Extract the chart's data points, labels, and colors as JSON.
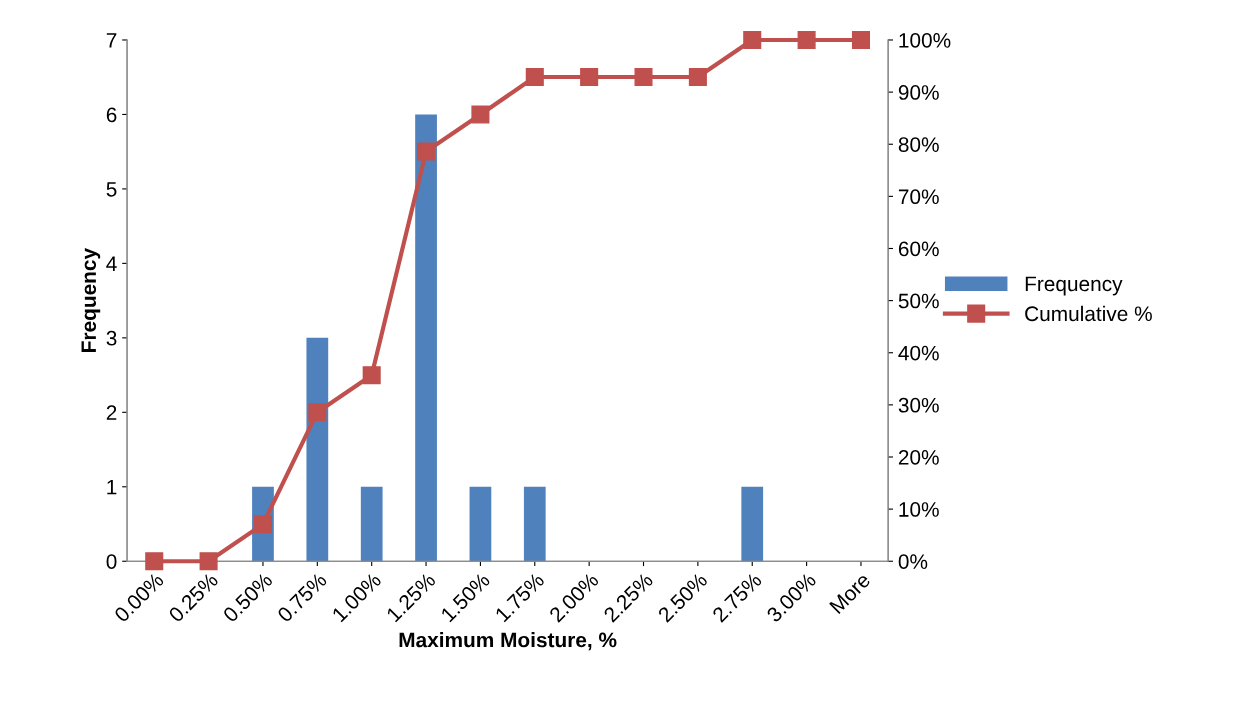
{
  "chart_data": {
    "type": "bar",
    "xlabel": "Maximum Moisture, %",
    "ylabel": "Frequency",
    "categories": [
      "0.00%",
      "0.25%",
      "0.50%",
      "0.75%",
      "1.00%",
      "1.25%",
      "1.50%",
      "1.75%",
      "2.00%",
      "2.25%",
      "2.50%",
      "2.75%",
      "3.00%",
      "More"
    ],
    "series": [
      {
        "name": "Frequency",
        "color": "#4f81bd",
        "values": [
          0,
          0,
          1,
          3,
          1,
          6,
          1,
          1,
          0,
          0,
          0,
          1,
          0,
          0
        ]
      },
      {
        "name": "Cumulative %",
        "type": "line",
        "axis": "y2",
        "color": "#c0504d",
        "marker": "square",
        "values": [
          0,
          0,
          7.1,
          28.6,
          35.7,
          78.6,
          85.7,
          92.9,
          92.9,
          92.9,
          92.9,
          100,
          100,
          100
        ]
      }
    ],
    "ylim": [
      0,
      7
    ],
    "yticks": [
      0,
      1,
      2,
      3,
      4,
      5,
      6,
      7
    ],
    "y2lim": [
      0,
      100
    ],
    "y2ticks": [
      {
        "value": 0,
        "label": "0%"
      },
      {
        "value": 10,
        "label": "10%"
      },
      {
        "value": 20,
        "label": "20%"
      },
      {
        "value": 30,
        "label": "30%"
      },
      {
        "value": 40,
        "label": "40%"
      },
      {
        "value": 50,
        "label": "50%"
      },
      {
        "value": 60,
        "label": "60%"
      },
      {
        "value": 70,
        "label": "70%"
      },
      {
        "value": 80,
        "label": "80%"
      },
      {
        "value": 90,
        "label": "90%"
      },
      {
        "value": 100,
        "label": "100%"
      }
    ],
    "grid": false,
    "legend": "right"
  }
}
